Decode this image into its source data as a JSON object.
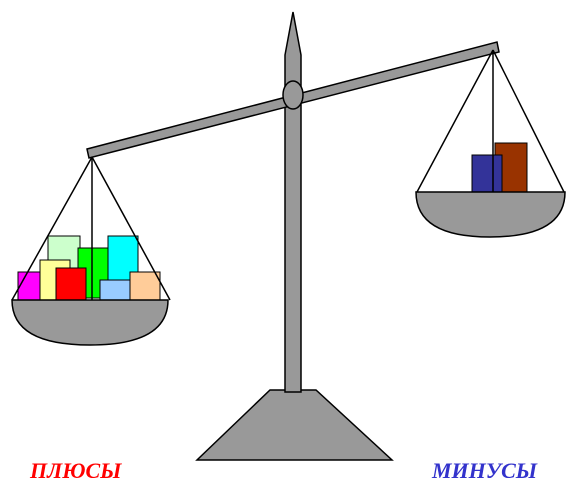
{
  "labels": {
    "left": "ПЛЮСЫ",
    "right": "МИНУСЫ"
  }
}
